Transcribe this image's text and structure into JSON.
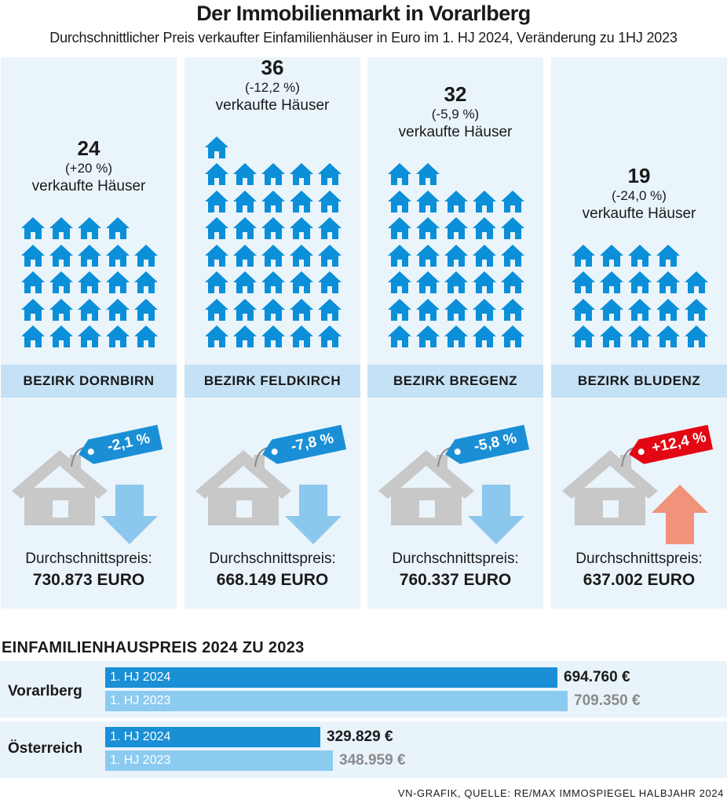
{
  "title": "Der Immobilienmarkt in Vorarlberg",
  "subtitle": "Durchschnittlicher Preis verkaufter Einfamilienhäuser in Euro im 1. HJ 2024, Veränderung zu 1HJ 2023",
  "colors": {
    "panel_bg": "#eaf4fb",
    "band_bg": "#c5e1f5",
    "house_blue": "#0a8fd8",
    "house_grey": "#c8c8c8",
    "tag_blue": "#1a8fd6",
    "tag_red": "#e30613",
    "arrow_down": "#8cc7ee",
    "arrow_up": "#f0937a",
    "bar_2024": "#1a8fd6",
    "bar_2023": "#8ccbf0",
    "value_2023": "#8a8a8a"
  },
  "icons": {
    "house": "house-icon",
    "price_tag": "price-tag-icon",
    "arrow_down": "arrow-down-icon",
    "arrow_up": "arrow-up-icon"
  },
  "sold_label": "verkaufte Häuser",
  "price_label": "Durchschnittspreis:",
  "districts": [
    {
      "name": "BEZIRK DORNBIRN",
      "sold": 24,
      "sold_text": "24",
      "sold_change": "(+20 %)",
      "price_change": "-2,1 %",
      "direction": "down",
      "price": "730.873 EURO"
    },
    {
      "name": "BEZIRK FELDKIRCH",
      "sold": 36,
      "sold_text": "36",
      "sold_change": "(-12,2 %)",
      "price_change": "-7,8 %",
      "direction": "down",
      "price": "668.149 EURO"
    },
    {
      "name": "BEZIRK BREGENZ",
      "sold": 32,
      "sold_text": "32",
      "sold_change": "(-5,9 %)",
      "price_change": "-5,8 %",
      "direction": "down",
      "price": "760.337 EURO"
    },
    {
      "name": "BEZIRK BLUDENZ",
      "sold": 19,
      "sold_text": "19",
      "sold_change": "(-24,0 %)",
      "price_change": "+12,4 %",
      "direction": "up",
      "price": "637.002 EURO"
    }
  ],
  "comparison_title": "EINFAMILIENHAUSPREIS 2024 ZU 2023",
  "chart_data": {
    "type": "bar",
    "title": "EINFAMILIENHAUSPREIS 2024 ZU 2023",
    "categories": [
      "Vorarlberg",
      "Österreich"
    ],
    "series": [
      {
        "name": "1. HJ 2024",
        "values": [
          694760,
          329829
        ],
        "labels": [
          "694.760 €",
          "329.829 €"
        ]
      },
      {
        "name": "1. HJ 2023",
        "values": [
          709350,
          348959
        ],
        "labels": [
          "709.350 €",
          "348.959 €"
        ]
      }
    ],
    "xlim": [
      0,
      775000
    ],
    "legend": "inline"
  },
  "source": "VN-GRAFIK, QUELLE: RE/MAX IMMOSPIEGEL HALBJAHR 2024"
}
